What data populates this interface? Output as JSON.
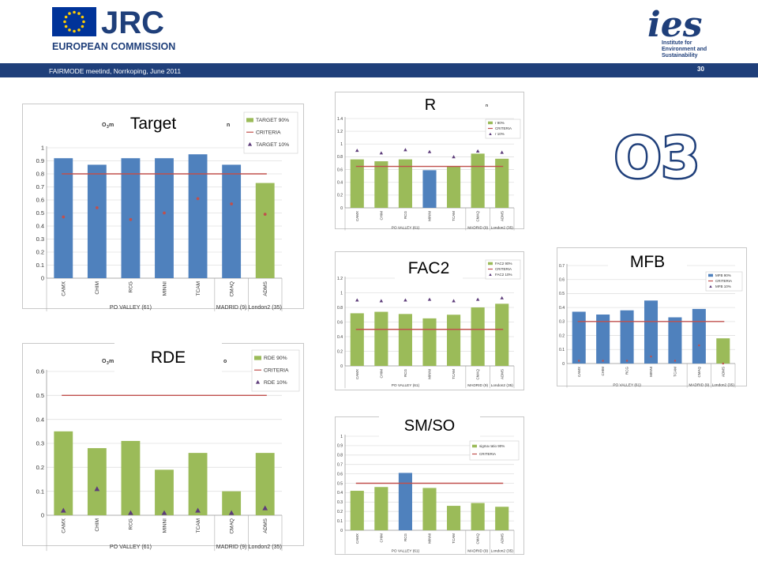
{
  "header": {
    "jrc_logo_text": "JRC",
    "jrc_subtitle": "EUROPEAN COMMISSION",
    "ies_logo_text": "ies",
    "ies_subtitle": [
      "Institute for",
      "Environment and",
      "Sustainability"
    ],
    "meeting": "FAIRMODE meetind, Norrkoping, June 2011",
    "page_number": "30"
  },
  "big_title": "O3",
  "chart_labels": {
    "target": "Target",
    "r": "R",
    "fac2": "FAC2",
    "mfb": "MFB",
    "rde": "RDE",
    "smso": "SM/SO"
  },
  "colors": {
    "blue": "#4f81bd",
    "green": "#9bbb59",
    "criteria": "#c0504d",
    "marker": "#5d3c7a",
    "header_bar": "#1f3f7a"
  },
  "chart_data": [
    {
      "id": "target",
      "type": "bar",
      "categories": [
        "CAMX",
        "CHIM",
        "RCG",
        "MINNI",
        "TCAM",
        "CMAQ",
        "ADMS"
      ],
      "groups": [
        "PO VALLEY (61)",
        "MADRID (9)",
        "London2 (35)"
      ],
      "values": [
        0.92,
        0.87,
        0.92,
        0.92,
        0.95,
        0.87,
        0.73
      ],
      "bar_colors": [
        "blue",
        "blue",
        "blue",
        "blue",
        "blue",
        "blue",
        "green"
      ],
      "markers": [
        0.47,
        0.54,
        0.45,
        0.5,
        0.61,
        0.57,
        0.49
      ],
      "marker_shape": "dot",
      "criteria": 0.8,
      "ylim": [
        0,
        1
      ],
      "yticks": [
        0,
        0.1,
        0.2,
        0.3,
        0.4,
        0.5,
        0.6,
        0.7,
        0.8,
        0.9,
        1
      ],
      "title_fragments": [
        "O",
        "3",
        " m",
        "n"
      ],
      "legend": [
        "TARGET 90%",
        "CRITERIA",
        "TARGET 10%"
      ]
    },
    {
      "id": "r",
      "type": "bar",
      "categories": [
        "CAMX",
        "CHIM",
        "RCG",
        "MINNI",
        "TCAM",
        "CMAQ",
        "ADMS"
      ],
      "groups": [
        "PO VALLEY (61)",
        "MADRID (9)",
        "London2 (35)"
      ],
      "values": [
        0.76,
        0.73,
        0.76,
        0.59,
        0.65,
        0.85,
        0.77
      ],
      "bar_colors": [
        "green",
        "green",
        "green",
        "blue",
        "green",
        "green",
        "green"
      ],
      "markers": [
        0.9,
        0.86,
        0.91,
        0.88,
        0.8,
        0.89,
        0.87
      ],
      "marker_shape": "triangle",
      "criteria": 0.65,
      "ylim": [
        0,
        1.4
      ],
      "yticks": [
        0,
        0.2,
        0.4,
        0.6,
        0.8,
        1,
        1.2,
        1.4
      ],
      "title_fragments": [
        "n"
      ],
      "legend": [
        "r 90%",
        "CRITERIA",
        "r 10%"
      ]
    },
    {
      "id": "fac2",
      "type": "bar",
      "categories": [
        "CAMX",
        "CHIM",
        "RCG",
        "MINNI",
        "TCAM",
        "CMAQ",
        "ADMS"
      ],
      "groups": [
        "PO VALLEY (61)",
        "MADRID (9)",
        "London2 (35)"
      ],
      "values": [
        0.72,
        0.74,
        0.71,
        0.65,
        0.7,
        0.8,
        0.85
      ],
      "bar_colors": [
        "green",
        "green",
        "green",
        "green",
        "green",
        "green",
        "green"
      ],
      "markers": [
        0.9,
        0.89,
        0.9,
        0.91,
        0.89,
        0.91,
        0.93
      ],
      "marker_shape": "triangle",
      "criteria": 0.5,
      "ylim": [
        0,
        1.2
      ],
      "yticks": [
        0,
        0.2,
        0.4,
        0.6,
        0.8,
        1,
        1.2
      ],
      "title_fragments": [],
      "legend": [
        "FAC2 90%",
        "CRITERIA",
        "FAC2 10%"
      ]
    },
    {
      "id": "mfb",
      "type": "bar",
      "categories": [
        "CAMX",
        "CHIM",
        "RCG",
        "MINNI",
        "TCAM",
        "CMAQ",
        "ADMS"
      ],
      "groups": [
        "PO VALLEY (61)",
        "MADRID (9)",
        "London2 (35)"
      ],
      "values": [
        0.37,
        0.35,
        0.38,
        0.45,
        0.33,
        0.39,
        0.18
      ],
      "bar_colors": [
        "blue",
        "blue",
        "blue",
        "blue",
        "blue",
        "blue",
        "green"
      ],
      "markers": [
        0.02,
        0.02,
        0.02,
        0.05,
        0.02,
        0.13,
        0.0
      ],
      "marker_shape": "dot",
      "criteria": 0.3,
      "ylim": [
        0,
        0.7
      ],
      "yticks": [
        0,
        0.1,
        0.2,
        0.3,
        0.4,
        0.5,
        0.6,
        0.7
      ],
      "title_fragments": [],
      "legend": [
        "MFB 90%",
        "CRITERIA",
        "MFB 10%"
      ]
    },
    {
      "id": "rde",
      "type": "bar",
      "categories": [
        "CAMX",
        "CHIM",
        "RCG",
        "MINNI",
        "TCAM",
        "CMAQ",
        "ADMS"
      ],
      "groups": [
        "PO VALLEY (61)",
        "MADRID (9)",
        "London2 (35)"
      ],
      "values": [
        0.35,
        0.28,
        0.31,
        0.19,
        0.26,
        0.1,
        0.26
      ],
      "bar_colors": [
        "green",
        "green",
        "green",
        "green",
        "green",
        "green",
        "green"
      ],
      "markers": [
        0.02,
        0.11,
        0.01,
        0.01,
        0.02,
        0.01,
        0.03
      ],
      "marker_shape": "triangle",
      "criteria": 0.5,
      "ylim": [
        0,
        0.6
      ],
      "yticks": [
        0,
        0.1,
        0.2,
        0.3,
        0.4,
        0.5,
        0.6
      ],
      "title_fragments": [
        "O",
        "3",
        " m",
        "o"
      ],
      "legend": [
        "RDE 90%",
        "CRITERIA",
        "RDE 10%"
      ]
    },
    {
      "id": "smso",
      "type": "bar",
      "categories": [
        "CAMX",
        "CHIM",
        "RCG",
        "MINNI",
        "TCAM",
        "CMAQ",
        "ADMS"
      ],
      "groups": [
        "PO VALLEY (61)",
        "MADRID (9)",
        "London2 (35)"
      ],
      "values": [
        0.42,
        0.46,
        0.61,
        0.45,
        0.26,
        0.29,
        0.25
      ],
      "bar_colors": [
        "green",
        "green",
        "blue",
        "green",
        "green",
        "green",
        "green"
      ],
      "markers": [],
      "marker_shape": "none",
      "criteria": 0.5,
      "ylim": [
        0,
        1
      ],
      "yticks": [
        0,
        0.1,
        0.2,
        0.3,
        0.4,
        0.5,
        0.6,
        0.7,
        0.8,
        0.9,
        1
      ],
      "title_fragments": [],
      "legend": [
        "sigma ratio 90%",
        "CRITERIA"
      ]
    }
  ]
}
